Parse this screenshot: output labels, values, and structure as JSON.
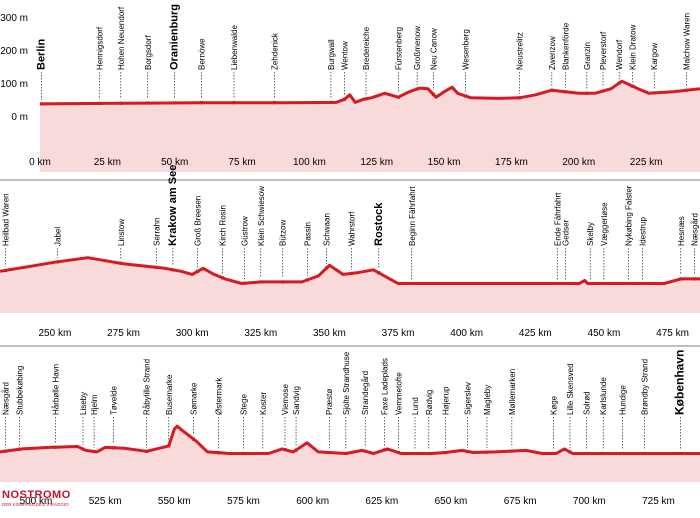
{
  "chart_data": {
    "type": "area",
    "title": "",
    "xlabel": "",
    "ylabel": "",
    "y_ticks": [
      "300 m",
      "200 m",
      "100 m",
      "0 m"
    ],
    "ylim": [
      -60,
      350
    ],
    "rows": [
      {
        "xlim": [
          0,
          245
        ],
        "x_ticks": [
          {
            "v": 0,
            "label": "0 km"
          },
          {
            "v": 25,
            "label": "25 km"
          },
          {
            "v": 50,
            "label": "50 km"
          },
          {
            "v": 75,
            "label": "75 km"
          },
          {
            "v": 100,
            "label": "100 km"
          },
          {
            "v": 125,
            "label": "125 km"
          },
          {
            "v": 150,
            "label": "150 km"
          },
          {
            "v": 175,
            "label": "175 km"
          },
          {
            "v": 200,
            "label": "200 km"
          },
          {
            "v": 225,
            "label": "225 km"
          }
        ],
        "profile": [
          [
            0,
            40
          ],
          [
            30,
            42
          ],
          [
            60,
            44
          ],
          [
            90,
            44
          ],
          [
            110,
            45
          ],
          [
            113,
            55
          ],
          [
            115,
            70
          ],
          [
            117,
            45
          ],
          [
            120,
            55
          ],
          [
            123,
            60
          ],
          [
            128,
            75
          ],
          [
            133,
            62
          ],
          [
            137,
            80
          ],
          [
            141,
            92
          ],
          [
            144,
            90
          ],
          [
            147,
            62
          ],
          [
            150,
            80
          ],
          [
            153,
            95
          ],
          [
            155,
            75
          ],
          [
            160,
            60
          ],
          [
            170,
            58
          ],
          [
            178,
            60
          ],
          [
            184,
            70
          ],
          [
            190,
            85
          ],
          [
            195,
            80
          ],
          [
            200,
            75
          ],
          [
            206,
            75
          ],
          [
            212,
            90
          ],
          [
            216,
            115
          ],
          [
            222,
            90
          ],
          [
            226,
            75
          ],
          [
            235,
            80
          ],
          [
            245,
            90
          ]
        ],
        "places": [
          {
            "km": 0.6,
            "label": "Berlin",
            "style": "major"
          },
          {
            "km": 22,
            "label": "Hennigsdorf",
            "style": "normal"
          },
          {
            "km": 30,
            "label": "Hohen Neuendorf",
            "style": "normal"
          },
          {
            "km": 40,
            "label": "Borgsdorf",
            "style": "normal"
          },
          {
            "km": 50,
            "label": "Oranienburg",
            "style": "major"
          },
          {
            "km": 60,
            "label": "Bernöwe",
            "style": "normal"
          },
          {
            "km": 72,
            "label": "Liebenwalde",
            "style": "normal"
          },
          {
            "km": 87,
            "label": "Zehdenick",
            "style": "normal"
          },
          {
            "km": 108,
            "label": "Burgwall",
            "style": "normal"
          },
          {
            "km": 113,
            "label": "Wentow",
            "style": "normal"
          },
          {
            "km": 121,
            "label": "Bredereiche",
            "style": "normal"
          },
          {
            "km": 133,
            "label": "Fürstenberg",
            "style": "normal"
          },
          {
            "km": 140,
            "label": "Großmenow",
            "style": "normal"
          },
          {
            "km": 146,
            "label": "Neu Canow",
            "style": "normal"
          },
          {
            "km": 158,
            "label": "Wesenberg",
            "style": "normal"
          },
          {
            "km": 178,
            "label": "Neustrelitz",
            "style": "normal"
          },
          {
            "km": 190,
            "label": "Zwenzow",
            "style": "normal"
          },
          {
            "km": 195,
            "label": "Blankenförde",
            "style": "normal"
          },
          {
            "km": 203,
            "label": "Granzin",
            "style": "normal"
          },
          {
            "km": 209,
            "label": "Pleverstorf",
            "style": "normal"
          },
          {
            "km": 215,
            "label": "Wendorf",
            "style": "normal"
          },
          {
            "km": 220,
            "label": "Klein Dratow",
            "style": "normal"
          },
          {
            "km": 228,
            "label": "Kargow",
            "style": "normal"
          },
          {
            "km": 240,
            "label": "Malchow Waren",
            "style": "normal"
          }
        ]
      },
      {
        "xlim": [
          230,
          485
        ],
        "x_ticks": [
          {
            "v": 250,
            "label": "250 km"
          },
          {
            "v": 275,
            "label": "275 km"
          },
          {
            "v": 300,
            "label": "300 km"
          },
          {
            "v": 325,
            "label": "325 km"
          },
          {
            "v": 350,
            "label": "350 km"
          },
          {
            "v": 375,
            "label": "375 km"
          },
          {
            "v": 400,
            "label": "400 km"
          },
          {
            "v": 425,
            "label": "425 km"
          },
          {
            "v": 450,
            "label": "450 km"
          },
          {
            "v": 475,
            "label": "475 km"
          }
        ],
        "profile": [
          [
            230,
            55
          ],
          [
            240,
            70
          ],
          [
            250,
            85
          ],
          [
            262,
            100
          ],
          [
            275,
            80
          ],
          [
            290,
            65
          ],
          [
            296,
            55
          ],
          [
            300,
            45
          ],
          [
            304,
            65
          ],
          [
            308,
            45
          ],
          [
            312,
            30
          ],
          [
            318,
            15
          ],
          [
            325,
            20
          ],
          [
            340,
            20
          ],
          [
            346,
            40
          ],
          [
            350,
            75
          ],
          [
            355,
            45
          ],
          [
            360,
            50
          ],
          [
            366,
            60
          ],
          [
            372,
            30
          ],
          [
            375,
            15
          ],
          [
            400,
            15
          ],
          [
            425,
            15
          ],
          [
            441,
            15
          ],
          [
            443,
            25
          ],
          [
            444,
            15
          ],
          [
            460,
            15
          ],
          [
            472,
            15
          ],
          [
            478,
            30
          ],
          [
            485,
            30
          ]
        ],
        "places": [
          {
            "km": 232,
            "label": "Heilbad Waren",
            "style": "normal"
          },
          {
            "km": 251,
            "label": "Jabel",
            "style": "normal"
          },
          {
            "km": 274,
            "label": "Linstow",
            "style": "normal"
          },
          {
            "km": 287,
            "label": "Serrahn",
            "style": "normal"
          },
          {
            "km": 293,
            "label": "Krakow am See",
            "style": "major"
          },
          {
            "km": 302,
            "label": "Groß Breesen",
            "style": "normal"
          },
          {
            "km": 311,
            "label": "Kirch Rosin",
            "style": "normal"
          },
          {
            "km": 319,
            "label": "Güstrow",
            "style": "normal"
          },
          {
            "km": 325,
            "label": "Klein Schwiesow",
            "style": "normal"
          },
          {
            "km": 333,
            "label": "Bützow",
            "style": "normal"
          },
          {
            "km": 342,
            "label": "Passin",
            "style": "normal"
          },
          {
            "km": 349,
            "label": "Schwaan",
            "style": "normal"
          },
          {
            "km": 358,
            "label": "Wahrstorf",
            "style": "normal"
          },
          {
            "km": 368,
            "label": "Rostock",
            "style": "major"
          },
          {
            "km": 380,
            "label": "Beginn Fährfahrt",
            "style": "normal"
          },
          {
            "km": 433,
            "label": "Ende Fährfahrt",
            "style": "normal"
          },
          {
            "km": 436,
            "label": "Gedser",
            "style": "normal"
          },
          {
            "km": 445,
            "label": "Skelby",
            "style": "normal"
          },
          {
            "km": 450,
            "label": "Væggerløse",
            "style": "normal"
          },
          {
            "km": 459,
            "label": "Nykøbing Falster",
            "style": "normal"
          },
          {
            "km": 464,
            "label": "Idestrup",
            "style": "normal"
          },
          {
            "km": 478,
            "label": "Hesnæs",
            "style": "normal"
          },
          {
            "km": 483,
            "label": "Næsgård",
            "style": "normal"
          }
        ]
      },
      {
        "xlim": [
          487,
          740
        ],
        "x_ticks": [
          {
            "v": 500,
            "label": "500 km"
          },
          {
            "v": 525,
            "label": "525 km"
          },
          {
            "v": 550,
            "label": "550 km"
          },
          {
            "v": 575,
            "label": "575 km"
          },
          {
            "v": 600,
            "label": "600 km"
          },
          {
            "v": 625,
            "label": "625 km"
          },
          {
            "v": 650,
            "label": "650 km"
          },
          {
            "v": 675,
            "label": "675 km"
          },
          {
            "v": 700,
            "label": "700 km"
          },
          {
            "v": 725,
            "label": "725 km"
          }
        ],
        "profile": [
          [
            487,
            20
          ],
          [
            495,
            30
          ],
          [
            505,
            35
          ],
          [
            515,
            38
          ],
          [
            518,
            25
          ],
          [
            522,
            20
          ],
          [
            525,
            35
          ],
          [
            532,
            32
          ],
          [
            540,
            22
          ],
          [
            548,
            40
          ],
          [
            550,
            95
          ],
          [
            551,
            105
          ],
          [
            553,
            90
          ],
          [
            558,
            55
          ],
          [
            562,
            20
          ],
          [
            570,
            15
          ],
          [
            576,
            15
          ],
          [
            584,
            15
          ],
          [
            589,
            30
          ],
          [
            593,
            20
          ],
          [
            598,
            50
          ],
          [
            602,
            20
          ],
          [
            612,
            15
          ],
          [
            618,
            25
          ],
          [
            622,
            15
          ],
          [
            627,
            30
          ],
          [
            632,
            15
          ],
          [
            643,
            15
          ],
          [
            648,
            18
          ],
          [
            654,
            25
          ],
          [
            658,
            18
          ],
          [
            666,
            20
          ],
          [
            677,
            25
          ],
          [
            683,
            15
          ],
          [
            688,
            15
          ],
          [
            691,
            30
          ],
          [
            694,
            15
          ],
          [
            703,
            15
          ],
          [
            720,
            15
          ],
          [
            740,
            15
          ]
        ],
        "places": [
          {
            "km": 489,
            "label": "Næsgård",
            "style": "normal"
          },
          {
            "km": 494,
            "label": "Stubbekøbing",
            "style": "normal"
          },
          {
            "km": 507,
            "label": "Hårbølle Havn",
            "style": "normal"
          },
          {
            "km": 517,
            "label": "Liseby",
            "style": "normal"
          },
          {
            "km": 521,
            "label": "Hjelm",
            "style": "normal"
          },
          {
            "km": 528,
            "label": "Tøvelde",
            "style": "normal"
          },
          {
            "km": 540,
            "label": "Råbylille Strand",
            "style": "normal"
          },
          {
            "km": 548,
            "label": "Busemarke",
            "style": "normal"
          },
          {
            "km": 557,
            "label": "Sømarke",
            "style": "normal"
          },
          {
            "km": 566,
            "label": "Østermark",
            "style": "normal"
          },
          {
            "km": 575,
            "label": "Stege",
            "style": "normal"
          },
          {
            "km": 582,
            "label": "Koster",
            "style": "normal"
          },
          {
            "km": 590,
            "label": "Viemose",
            "style": "normal"
          },
          {
            "km": 594,
            "label": "Sandvig",
            "style": "normal"
          },
          {
            "km": 606,
            "label": "Præstø",
            "style": "normal"
          },
          {
            "km": 612,
            "label": "Sjolte Strandhuse",
            "style": "normal"
          },
          {
            "km": 619,
            "label": "Strandegård",
            "style": "normal"
          },
          {
            "km": 626,
            "label": "Faxe Ladeplads",
            "style": "normal"
          },
          {
            "km": 631,
            "label": "Vemmetofte",
            "style": "normal"
          },
          {
            "km": 637,
            "label": "Lund",
            "style": "normal"
          },
          {
            "km": 642,
            "label": "Rødvig",
            "style": "normal"
          },
          {
            "km": 648,
            "label": "Højerup",
            "style": "normal"
          },
          {
            "km": 656,
            "label": "Sigerslev",
            "style": "normal"
          },
          {
            "km": 663,
            "label": "Magleby",
            "style": "normal"
          },
          {
            "km": 672,
            "label": "Møllemarken",
            "style": "normal"
          },
          {
            "km": 687,
            "label": "Køge",
            "style": "normal"
          },
          {
            "km": 693,
            "label": "Lille Skensved",
            "style": "normal"
          },
          {
            "km": 699,
            "label": "Solrød",
            "style": "normal"
          },
          {
            "km": 705,
            "label": "Karlslunde",
            "style": "normal"
          },
          {
            "km": 712,
            "label": "Hundige",
            "style": "normal"
          },
          {
            "km": 720,
            "label": "Brøndby Strand",
            "style": "normal"
          },
          {
            "km": 733,
            "label": "København",
            "style": "bigc"
          }
        ]
      }
    ]
  },
  "logo": {
    "title": "NOSTROMO",
    "subtitle": "DER KOMPASS DES VIRAGGIO"
  }
}
